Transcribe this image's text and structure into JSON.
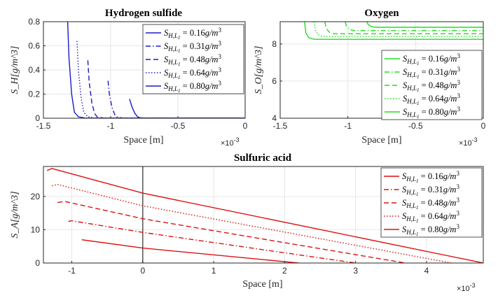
{
  "chart_data": [
    {
      "id": "h2s",
      "type": "line",
      "title": "Hydrogen sulfide",
      "xlabel": "Space [m]",
      "ylabel": "S_H[g/m^3]",
      "x_exponent": "×10",
      "x_exponent_power": "-3",
      "xlim": [
        -1.5,
        0
      ],
      "ylim": [
        0,
        0.8
      ],
      "xticks": [
        -1.5,
        -1,
        -0.5,
        0
      ],
      "xtick_labels": [
        "-1.5",
        "-1",
        "-0.5",
        "0"
      ],
      "yticks": [
        0,
        0.2,
        0.4,
        0.6,
        0.8
      ],
      "ytick_labels": [
        "0",
        "0.2",
        "0.4",
        "0.6",
        "0.8"
      ],
      "grid": true,
      "legend_position": "top-right",
      "color": "#1a1acc",
      "series": [
        {
          "name": "S_{H,L1} = 0.16g/m^3",
          "label_value": "0.16",
          "dash": "solid",
          "x": [
            -0.86,
            -0.84,
            -0.82,
            -0.8,
            -0.78,
            -0.74,
            0
          ],
          "y": [
            0.16,
            0.09,
            0.04,
            0.012,
            0.003,
            0.001,
            0.001
          ]
        },
        {
          "name": "S_{H,L1} = 0.31g/m^3",
          "label_value": "0.31",
          "dash": "dashdot",
          "x": [
            -1.02,
            -1.01,
            -0.99,
            -0.97,
            -0.95,
            -0.91,
            0
          ],
          "y": [
            0.31,
            0.2,
            0.09,
            0.03,
            0.008,
            0.001,
            0.001
          ]
        },
        {
          "name": "S_{H,L1} = 0.48g/m^3",
          "label_value": "0.48",
          "dash": "dashed",
          "x": [
            -1.17,
            -1.16,
            -1.14,
            -1.12,
            -1.1,
            -1.05,
            0
          ],
          "y": [
            0.48,
            0.3,
            0.13,
            0.04,
            0.01,
            0.001,
            0.001
          ]
        },
        {
          "name": "S_{H,L1} = 0.64g/m^3",
          "label_value": "0.64",
          "dash": "dotted",
          "x": [
            -1.25,
            -1.24,
            -1.22,
            -1.2,
            -1.17,
            -1.12,
            0
          ],
          "y": [
            0.64,
            0.4,
            0.17,
            0.05,
            0.012,
            0.001,
            0.001
          ]
        },
        {
          "name": "S_{H,L1} = 0.80g/m^3",
          "label_value": "0.80",
          "dash": "solid",
          "x": [
            -1.32,
            -1.31,
            -1.29,
            -1.27,
            -1.24,
            -1.19,
            0
          ],
          "y": [
            0.8,
            0.5,
            0.2,
            0.05,
            0.012,
            0.001,
            0.001
          ]
        }
      ]
    },
    {
      "id": "o2",
      "type": "line",
      "title": "Oxygen",
      "xlabel": "Space [m]",
      "ylabel": "S_O[g/m^3]",
      "x_exponent": "×10",
      "x_exponent_power": "-3",
      "xlim": [
        -1.5,
        0
      ],
      "ylim": [
        4,
        9.2
      ],
      "xticks": [
        -1.5,
        -1,
        -0.5,
        0
      ],
      "xtick_labels": [
        "-1.5",
        "-1",
        "-0.5",
        "0"
      ],
      "yticks": [
        4,
        6,
        8
      ],
      "ytick_labels": [
        "4",
        "6",
        "8"
      ],
      "grid": true,
      "legend_position": "bottom-right",
      "color": "#22dd22",
      "series": [
        {
          "name": "S_{H,L1} = 0.16g/m^3",
          "label_value": "0.16",
          "dash": "solid",
          "x": [
            -0.86,
            -0.85,
            -0.83,
            -0.81,
            -0.79,
            0
          ],
          "y": [
            9.2,
            9.05,
            8.95,
            8.91,
            8.9,
            8.9
          ]
        },
        {
          "name": "S_{H,L1} = 0.31g/m^3",
          "label_value": "0.31",
          "dash": "dashdot",
          "x": [
            -1.02,
            -1.01,
            -0.99,
            -0.97,
            -0.95,
            0
          ],
          "y": [
            9.2,
            8.95,
            8.8,
            8.74,
            8.72,
            8.72
          ]
        },
        {
          "name": "S_{H,L1} = 0.48g/m^3",
          "label_value": "0.48",
          "dash": "dashed",
          "x": [
            -1.17,
            -1.16,
            -1.14,
            -1.12,
            -1.1,
            0
          ],
          "y": [
            9.2,
            8.85,
            8.65,
            8.57,
            8.55,
            8.55
          ]
        },
        {
          "name": "S_{H,L1} = 0.64g/m^3",
          "label_value": "0.64",
          "dash": "dotted",
          "x": [
            -1.25,
            -1.24,
            -1.22,
            -1.19,
            -1.16,
            0
          ],
          "y": [
            9.2,
            8.75,
            8.5,
            8.42,
            8.4,
            8.4
          ]
        },
        {
          "name": "S_{H,L1} = 0.80g/m^3",
          "label_value": "0.80",
          "dash": "solid",
          "x": [
            -1.32,
            -1.31,
            -1.29,
            -1.26,
            -1.23,
            0
          ],
          "y": [
            9.2,
            8.6,
            8.35,
            8.27,
            8.25,
            8.25
          ]
        }
      ]
    },
    {
      "id": "acid",
      "type": "line",
      "title": "Sulfuric acid",
      "xlabel": "Space [m]",
      "ylabel": "S_A[g/m^3]",
      "x_exponent": "×10",
      "x_exponent_power": "-3",
      "xlim": [
        -1.4,
        4.8
      ],
      "ylim": [
        0,
        29
      ],
      "xticks": [
        -1,
        0,
        1,
        2,
        3,
        4
      ],
      "xtick_labels": [
        "-1",
        "0",
        "1",
        "2",
        "3",
        "4"
      ],
      "yticks": [
        0,
        10,
        20
      ],
      "ytick_labels": [
        "0",
        "10",
        "20"
      ],
      "grid": true,
      "vertical_line_at": 0,
      "legend_position": "top-right",
      "color": "#dd1111",
      "series": [
        {
          "name": "S_{H,L1} = 0.16g/m^3",
          "label_value": "0.16",
          "dash": "solid",
          "x": [
            -0.86,
            0,
            2.2
          ],
          "y": [
            7.0,
            4.5,
            0
          ]
        },
        {
          "name": "S_{H,L1} = 0.31g/m^3",
          "label_value": "0.31",
          "dash": "dashdot",
          "x": [
            -1.05,
            -1.0,
            0,
            3.0
          ],
          "y": [
            12.5,
            12.7,
            9.2,
            0
          ]
        },
        {
          "name": "S_{H,L1} = 0.48g/m^3",
          "label_value": "0.48",
          "dash": "dashed",
          "x": [
            -1.2,
            -1.1,
            0,
            3.7
          ],
          "y": [
            18.2,
            18.5,
            13.3,
            0
          ]
        },
        {
          "name": "S_{H,L1} = 0.64g/m^3",
          "label_value": "0.64",
          "dash": "dotted",
          "x": [
            -1.28,
            -1.2,
            0,
            4.35
          ],
          "y": [
            23.2,
            23.6,
            17.2,
            0
          ]
        },
        {
          "name": "S_{H,L1} = 0.80g/m^3",
          "label_value": "0.80",
          "dash": "solid",
          "x": [
            -1.35,
            -1.28,
            0,
            4.8
          ],
          "y": [
            27.8,
            28.4,
            21.0,
            0
          ]
        }
      ]
    }
  ],
  "legend": {
    "prefix_symbol": "S",
    "subscript": "H,L",
    "subsubscript": "1",
    "equals": " = ",
    "unit": "g/m",
    "unit_power": "3"
  }
}
